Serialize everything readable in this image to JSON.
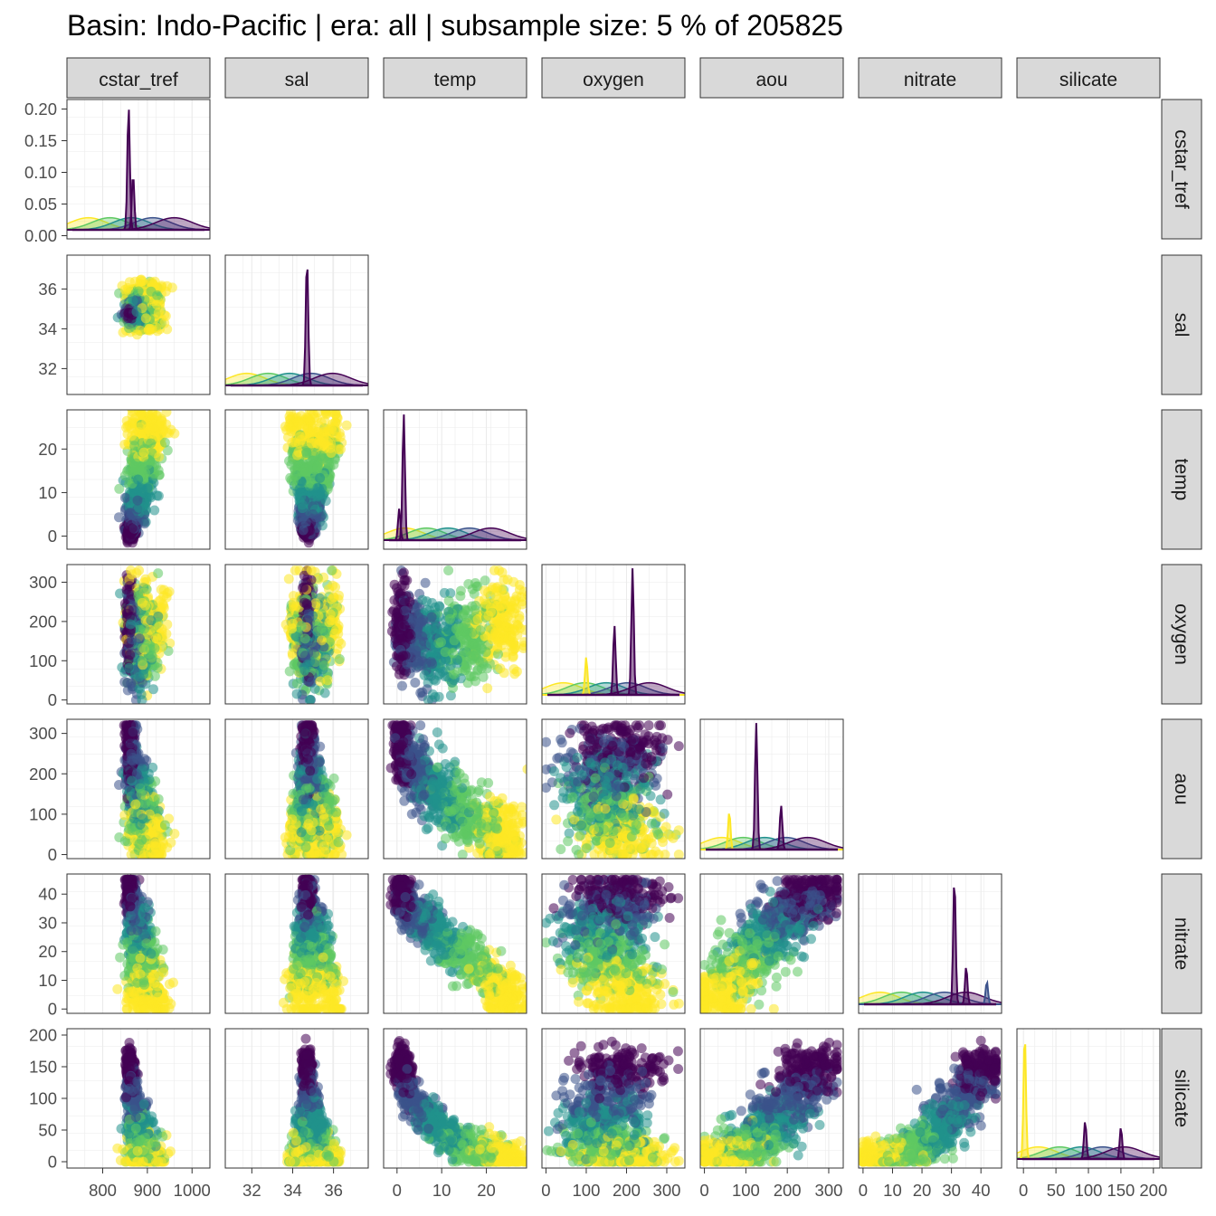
{
  "title": "Basin: Indo-Pacific | era: all | subsample size: 5 % of 205825",
  "chart_data": {
    "type": "scatter",
    "layout": "pairs-matrix-lower-triangle",
    "variables": [
      "cstar_tref",
      "sal",
      "temp",
      "oxygen",
      "aou",
      "nitrate",
      "silicate"
    ],
    "diagonal": "density",
    "color_scale": "viridis (by depth layer)",
    "colors": {
      "yellow": "#fde725",
      "green": "#5ec962",
      "teal": "#21918c",
      "blue": "#3b528b",
      "purple": "#440154",
      "strip_bg": "#d9d9d9",
      "grid": "#ebebeb"
    },
    "axes": {
      "cstar_tref": {
        "range": [
          720,
          1040
        ],
        "ticks": [
          800,
          900,
          1000
        ],
        "density_ticks": [
          0.0,
          0.05,
          0.1,
          0.15,
          0.2
        ],
        "density_range": [
          -0.005,
          0.215
        ]
      },
      "sal": {
        "range": [
          30.7,
          37.7
        ],
        "ticks": [
          32,
          34,
          36
        ]
      },
      "temp": {
        "range": [
          -3,
          29
        ],
        "ticks": [
          0,
          10,
          20
        ]
      },
      "oxygen": {
        "range": [
          -10,
          345
        ],
        "ticks": [
          0,
          100,
          200,
          300
        ]
      },
      "aou": {
        "range": [
          -10,
          335
        ],
        "ticks": [
          0,
          100,
          200,
          300
        ]
      },
      "nitrate": {
        "range": [
          -1.5,
          47
        ],
        "ticks": [
          0,
          10,
          20,
          30,
          40
        ]
      },
      "silicate": {
        "range": [
          -10,
          210
        ],
        "ticks": [
          0,
          50,
          100,
          150,
          200
        ]
      }
    },
    "tick_labels": {
      "cstar_tref": [
        "800",
        "900",
        "1000"
      ],
      "sal": [
        "32",
        "34",
        "36"
      ],
      "temp": [
        "0",
        "10",
        "20"
      ],
      "oxygen": [
        "0",
        "100",
        "200",
        "300"
      ],
      "aou": [
        "0",
        "100",
        "200",
        "300"
      ],
      "nitrate": [
        "0",
        "10",
        "20",
        "30",
        "40"
      ],
      "silicate": [
        "0",
        "50",
        "100",
        "150",
        "200"
      ],
      "density": [
        "0.00",
        "0.05",
        "0.10",
        "0.15",
        "0.20"
      ]
    },
    "density_peaks": {
      "cstar_tref": [
        {
          "x": 858,
          "h": 0.21,
          "color": "purple"
        },
        {
          "x": 868,
          "h": 0.095,
          "color": "purple"
        }
      ],
      "sal": [
        {
          "x": 34.7,
          "h": 1.0,
          "color": "purple"
        }
      ],
      "temp": [
        {
          "x": 1.5,
          "h": 1.0,
          "color": "purple"
        },
        {
          "x": 0.5,
          "h": 0.25,
          "color": "purple"
        }
      ],
      "oxygen": [
        {
          "x": 215,
          "h": 1.0,
          "color": "purple"
        },
        {
          "x": 170,
          "h": 0.55,
          "color": "purple"
        },
        {
          "x": 100,
          "h": 0.3,
          "color": "yellow"
        }
      ],
      "aou": [
        {
          "x": 125,
          "h": 1.0,
          "color": "purple"
        },
        {
          "x": 185,
          "h": 0.35,
          "color": "purple"
        },
        {
          "x": 60,
          "h": 0.3,
          "color": "yellow"
        }
      ],
      "nitrate": [
        {
          "x": 31,
          "h": 1.0,
          "color": "purple"
        },
        {
          "x": 35,
          "h": 0.3,
          "color": "purple"
        },
        {
          "x": 42,
          "h": 0.18,
          "color": "blue"
        }
      ],
      "silicate": [
        {
          "x": 2,
          "h": 1.0,
          "color": "yellow"
        },
        {
          "x": 95,
          "h": 0.3,
          "color": "purple"
        },
        {
          "x": 150,
          "h": 0.25,
          "color": "purple"
        }
      ]
    }
  }
}
